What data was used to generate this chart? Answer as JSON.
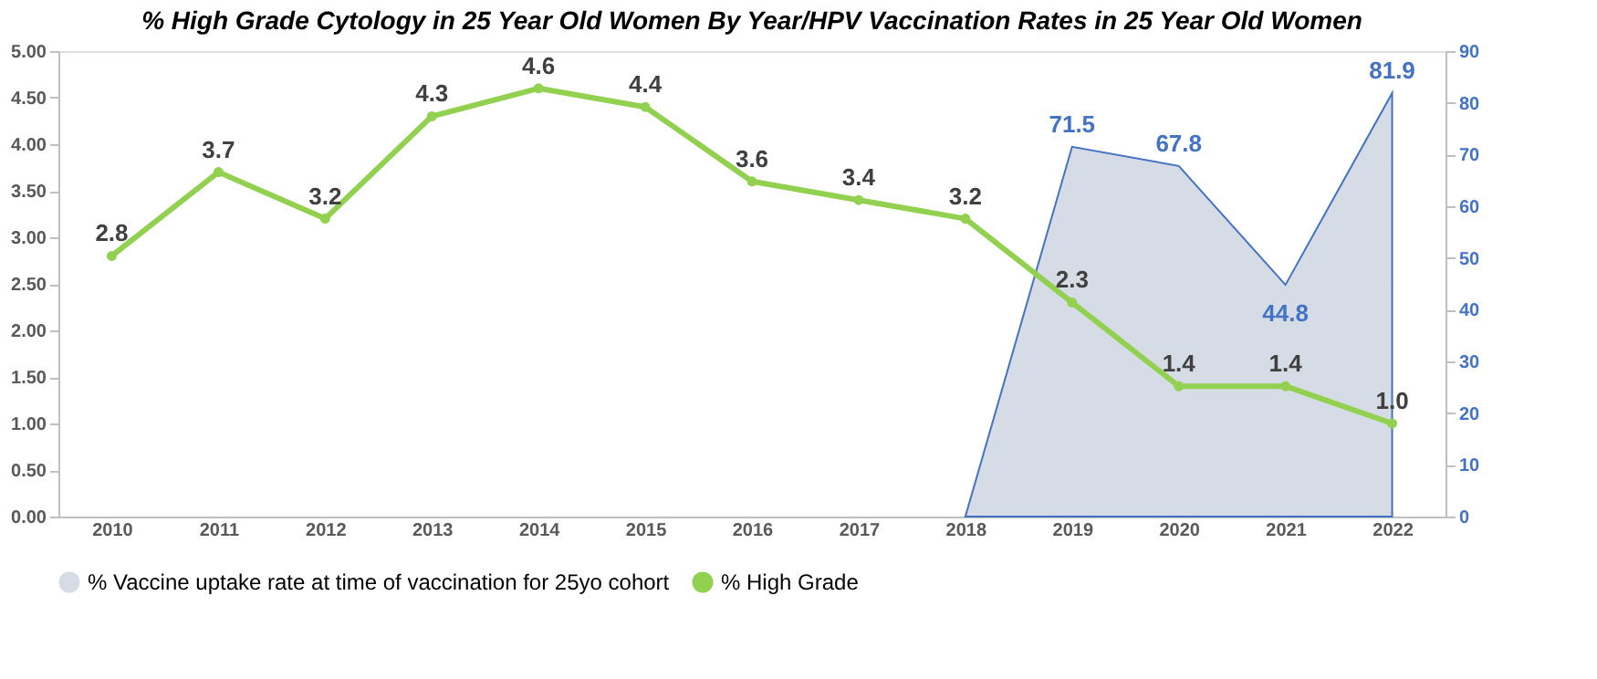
{
  "chart_data": {
    "type": "line",
    "title": "% High Grade Cytology in 25 Year Old Women By Year/HPV Vaccination Rates in 25 Year Old Women",
    "categories": [
      "2010",
      "2011",
      "2012",
      "2013",
      "2014",
      "2015",
      "2016",
      "2017",
      "2018",
      "2019",
      "2020",
      "2021",
      "2022"
    ],
    "series": [
      {
        "name": "% Vaccine uptake rate at time of vaccination for 25yo cohort",
        "type": "area",
        "axis": "y2",
        "color": "#d6dce5",
        "values": [
          null,
          null,
          null,
          null,
          null,
          null,
          null,
          null,
          0,
          71.5,
          67.8,
          44.8,
          81.9
        ],
        "value_labels": [
          null,
          null,
          null,
          null,
          null,
          null,
          null,
          null,
          null,
          "71.5",
          "67.8",
          "44.8",
          "81.9"
        ]
      },
      {
        "name": "% High Grade",
        "color": "#92d050",
        "marker": "circle",
        "values": [
          2.8,
          3.7,
          3.2,
          4.3,
          4.6,
          4.4,
          3.6,
          3.4,
          3.2,
          2.3,
          1.4,
          1.4,
          1.0
        ],
        "value_labels": [
          "2.8",
          "3.7",
          "3.2",
          "4.3",
          "4.6",
          "4.4",
          "3.6",
          "3.4",
          "3.2",
          "2.3",
          "1.4",
          "1.4",
          "1.0"
        ]
      }
    ],
    "ylim": [
      0,
      5
    ],
    "yticks": [
      {
        "value": 0,
        "label": "0.00"
      },
      {
        "value": 0.5,
        "label": "0.50"
      },
      {
        "value": 1,
        "label": "1.00"
      },
      {
        "value": 1.5,
        "label": "1.50"
      },
      {
        "value": 2,
        "label": "2.00"
      },
      {
        "value": 2.5,
        "label": "2.50"
      },
      {
        "value": 3,
        "label": "3.00"
      },
      {
        "value": 3.5,
        "label": "3.50"
      },
      {
        "value": 4,
        "label": "4.00"
      },
      {
        "value": 4.5,
        "label": "4.50"
      },
      {
        "value": 5,
        "label": "5.00"
      }
    ],
    "y2lim": [
      0,
      90
    ],
    "y2ticks": [
      0,
      10,
      20,
      30,
      40,
      50,
      60,
      70,
      80,
      90
    ],
    "grid": false,
    "legend": "bottom"
  }
}
